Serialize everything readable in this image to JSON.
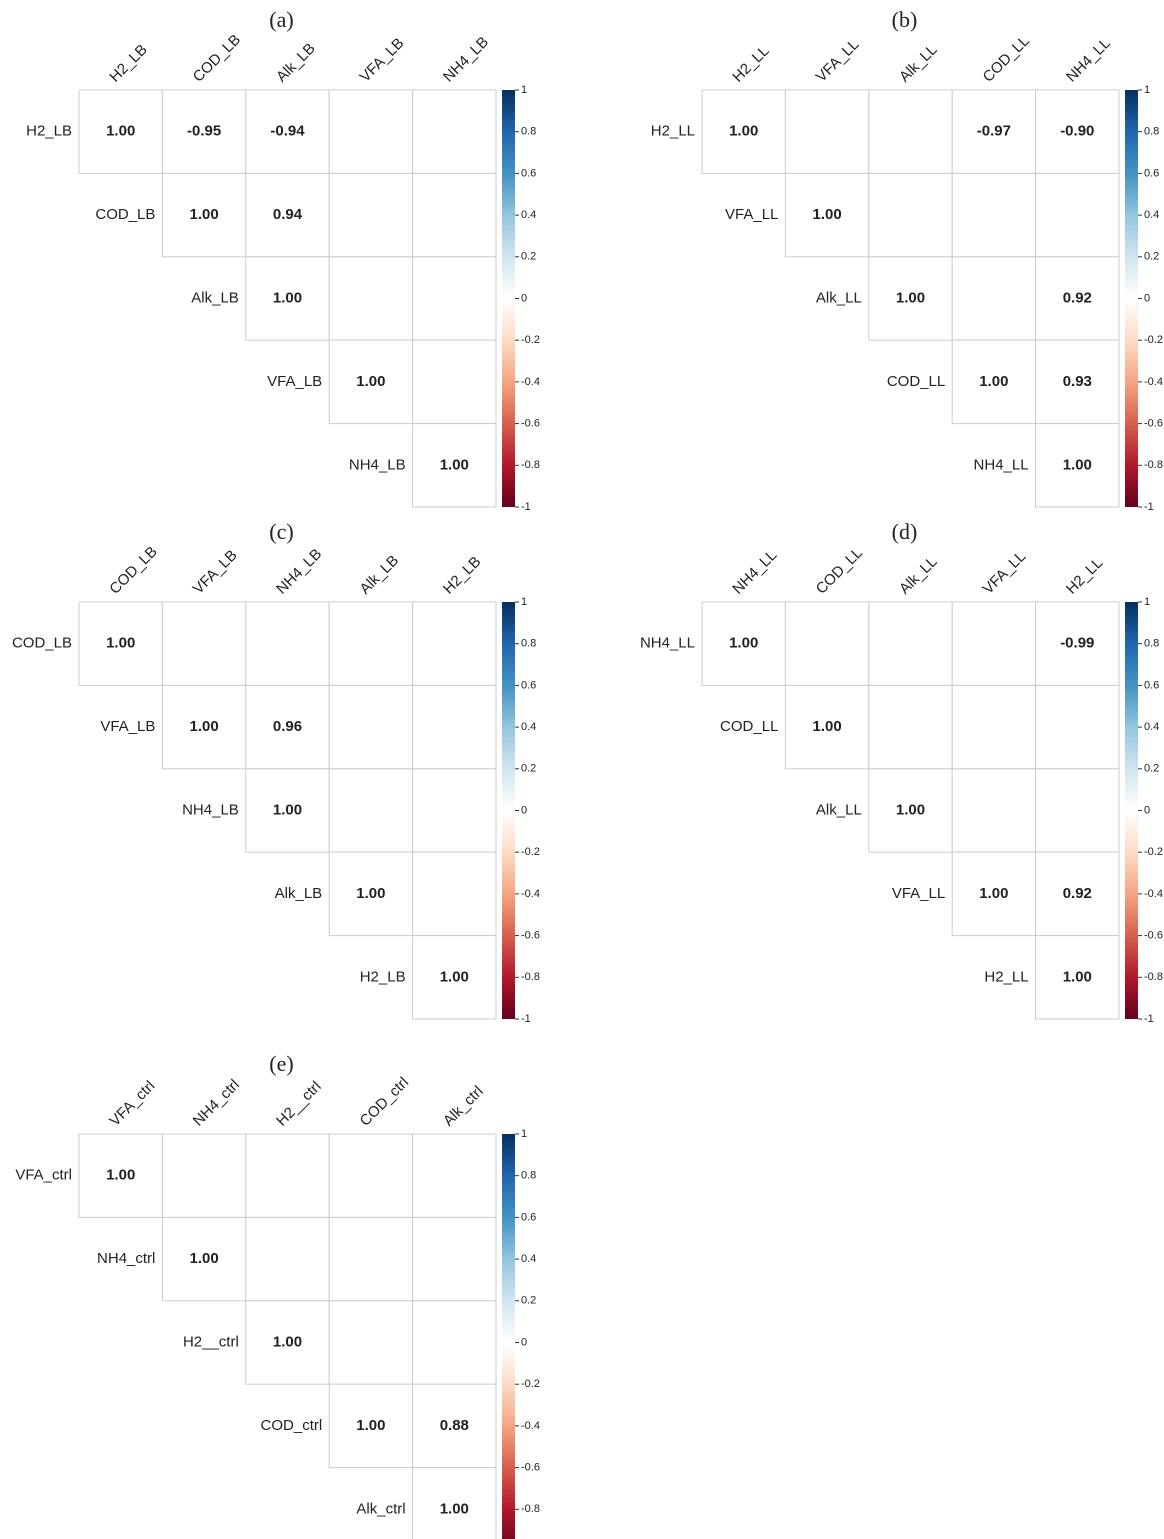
{
  "chart_data": [
    {
      "type": "corrplot",
      "title": "(a)",
      "variables": [
        "H2_LB",
        "COD_LB",
        "Alk_LB",
        "VFA_LB",
        "NH4_LB"
      ],
      "values": [
        [
          1,
          -0.95,
          -0.94,
          null,
          null
        ],
        [
          null,
          1,
          0.94,
          null,
          null
        ],
        [
          null,
          null,
          1,
          null,
          null
        ],
        [
          null,
          null,
          null,
          1,
          null
        ],
        [
          null,
          null,
          null,
          null,
          1
        ]
      ],
      "value_labels": [
        [
          "1.00",
          "-0.95",
          "-0.94",
          null,
          null
        ],
        [
          null,
          "1.00",
          "0.94",
          null,
          null
        ],
        [
          null,
          null,
          "1.00",
          null,
          null
        ],
        [
          null,
          null,
          null,
          "1.00",
          null
        ],
        [
          null,
          null,
          null,
          null,
          "1.00"
        ]
      ],
      "colorbar_lim": [
        -1,
        1
      ],
      "colorbar_ticks": [
        1,
        0.8,
        0.6,
        0.4,
        0.2,
        0,
        -0.2,
        -0.4,
        -0.6,
        -0.8,
        -1
      ],
      "colormap": [
        "#67001f",
        "#b2182b",
        "#d6604d",
        "#f4a582",
        "#fddbc7",
        "#ffffff",
        "#d1e5f0",
        "#92c5de",
        "#4393c3",
        "#2166ac",
        "#053061"
      ]
    },
    {
      "type": "corrplot",
      "title": "(b)",
      "variables": [
        "H2_LL",
        "VFA_LL",
        "Alk_LL",
        "COD_LL",
        "NH4_LL"
      ],
      "values": [
        [
          1,
          null,
          null,
          -0.97,
          -0.9
        ],
        [
          null,
          1,
          null,
          null,
          null
        ],
        [
          null,
          null,
          1,
          null,
          0.92
        ],
        [
          null,
          null,
          null,
          1,
          0.93
        ],
        [
          null,
          null,
          null,
          null,
          1
        ]
      ],
      "value_labels": [
        [
          "1.00",
          null,
          null,
          "-0.97",
          "-0.90"
        ],
        [
          null,
          "1.00",
          null,
          null,
          null
        ],
        [
          null,
          null,
          "1.00",
          null,
          "0.92"
        ],
        [
          null,
          null,
          null,
          "1.00",
          "0.93"
        ],
        [
          null,
          null,
          null,
          null,
          "1.00"
        ]
      ],
      "colorbar_lim": [
        -1,
        1
      ],
      "colorbar_ticks": [
        1,
        0.8,
        0.6,
        0.4,
        0.2,
        0,
        -0.2,
        -0.4,
        -0.6,
        -0.8,
        -1
      ],
      "colormap": [
        "#67001f",
        "#b2182b",
        "#d6604d",
        "#f4a582",
        "#fddbc7",
        "#ffffff",
        "#d1e5f0",
        "#92c5de",
        "#4393c3",
        "#2166ac",
        "#053061"
      ]
    },
    {
      "type": "corrplot",
      "title": "(c)",
      "variables": [
        "COD_LB",
        "VFA_LB",
        "NH4_LB",
        "Alk_LB",
        "H2_LB"
      ],
      "values": [
        [
          1,
          null,
          null,
          null,
          null
        ],
        [
          null,
          1,
          0.96,
          null,
          null
        ],
        [
          null,
          null,
          1,
          null,
          null
        ],
        [
          null,
          null,
          null,
          1,
          null
        ],
        [
          null,
          null,
          null,
          null,
          1
        ]
      ],
      "value_labels": [
        [
          "1.00",
          null,
          null,
          null,
          null
        ],
        [
          null,
          "1.00",
          "0.96",
          null,
          null
        ],
        [
          null,
          null,
          "1.00",
          null,
          null
        ],
        [
          null,
          null,
          null,
          "1.00",
          null
        ],
        [
          null,
          null,
          null,
          null,
          "1.00"
        ]
      ],
      "colorbar_lim": [
        -1,
        1
      ],
      "colorbar_ticks": [
        1,
        0.8,
        0.6,
        0.4,
        0.2,
        0,
        -0.2,
        -0.4,
        -0.6,
        -0.8,
        -1
      ],
      "colormap": [
        "#67001f",
        "#b2182b",
        "#d6604d",
        "#f4a582",
        "#fddbc7",
        "#ffffff",
        "#d1e5f0",
        "#92c5de",
        "#4393c3",
        "#2166ac",
        "#053061"
      ]
    },
    {
      "type": "corrplot",
      "title": "(d)",
      "variables": [
        "NH4_LL",
        "COD_LL",
        "Alk_LL",
        "VFA_LL",
        "H2_LL"
      ],
      "values": [
        [
          1,
          null,
          null,
          null,
          -0.99
        ],
        [
          null,
          1,
          null,
          null,
          null
        ],
        [
          null,
          null,
          1,
          null,
          null
        ],
        [
          null,
          null,
          null,
          1,
          0.92
        ],
        [
          null,
          null,
          null,
          null,
          1
        ]
      ],
      "value_labels": [
        [
          "1.00",
          null,
          null,
          null,
          "-0.99"
        ],
        [
          null,
          "1.00",
          null,
          null,
          null
        ],
        [
          null,
          null,
          "1.00",
          null,
          null
        ],
        [
          null,
          null,
          null,
          "1.00",
          "0.92"
        ],
        [
          null,
          null,
          null,
          null,
          "1.00"
        ]
      ],
      "colorbar_lim": [
        -1,
        1
      ],
      "colorbar_ticks": [
        1,
        0.8,
        0.6,
        0.4,
        0.2,
        0,
        -0.2,
        -0.4,
        -0.6,
        -0.8,
        -1
      ],
      "colormap": [
        "#67001f",
        "#b2182b",
        "#d6604d",
        "#f4a582",
        "#fddbc7",
        "#ffffff",
        "#d1e5f0",
        "#92c5de",
        "#4393c3",
        "#2166ac",
        "#053061"
      ]
    },
    {
      "type": "corrplot",
      "title": "(e)",
      "variables": [
        "VFA_ctrl",
        "NH4_ctrl",
        "H2__ctrl",
        "COD_ctrl",
        "Alk_ctrl"
      ],
      "values": [
        [
          1,
          null,
          null,
          null,
          null
        ],
        [
          null,
          1,
          null,
          null,
          null
        ],
        [
          null,
          null,
          1,
          null,
          null
        ],
        [
          null,
          null,
          null,
          1,
          0.88
        ],
        [
          null,
          null,
          null,
          null,
          1
        ]
      ],
      "value_labels": [
        [
          "1.00",
          null,
          null,
          null,
          null
        ],
        [
          null,
          "1.00",
          null,
          null,
          null
        ],
        [
          null,
          null,
          "1.00",
          null,
          null
        ],
        [
          null,
          null,
          null,
          "1.00",
          "0.88"
        ],
        [
          null,
          null,
          null,
          null,
          "1.00"
        ]
      ],
      "colorbar_lim": [
        -1,
        1
      ],
      "colorbar_ticks": [
        1,
        0.8,
        0.6,
        0.4,
        0.2,
        0,
        -0.2,
        -0.4,
        -0.6,
        -0.8
      ],
      "colormap": [
        "#67001f",
        "#b2182b",
        "#d6604d",
        "#f4a582",
        "#fddbc7",
        "#ffffff",
        "#d1e5f0",
        "#92c5de",
        "#4393c3",
        "#2166ac",
        "#053061"
      ]
    }
  ]
}
